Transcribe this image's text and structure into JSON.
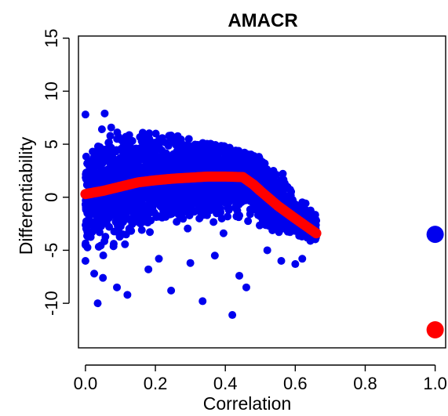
{
  "chart_data": {
    "type": "scatter",
    "title": "AMACR",
    "xlabel": "Correlation",
    "ylabel": "Differentiability",
    "xlim": [
      -0.02,
      1.03
    ],
    "ylim": [
      -14.2,
      15.2
    ],
    "xticks": [
      0.0,
      0.2,
      0.4,
      0.6,
      0.8,
      1.0
    ],
    "xtick_labels": [
      "0.0",
      "0.2",
      "0.4",
      "0.6",
      "0.8",
      "1.0"
    ],
    "yticks": [
      -10,
      -5,
      0,
      5,
      10,
      15
    ],
    "ytick_labels": [
      "-10",
      "-5",
      "0",
      "5",
      "10",
      "15"
    ],
    "grid": false,
    "legend": "none",
    "colors": {
      "points": "#0000ee",
      "trend": "#ff0000",
      "highlight_blue": "#0000ee",
      "highlight_red": "#ff0000"
    },
    "series": [
      {
        "kind": "points",
        "color": "#0000ee",
        "description_of_cloud": {
          "x_range": [
            0.0,
            0.66
          ],
          "center_line": [
            [
              0.0,
              0.5
            ],
            [
              0.15,
              1.5
            ],
            [
              0.3,
              1.9
            ],
            [
              0.45,
              2.0
            ],
            [
              0.5,
              0.6
            ],
            [
              0.6,
              -1.8
            ],
            [
              0.66,
              -3.0
            ]
          ],
          "upper_edge": [
            [
              0.0,
              8.0
            ],
            [
              0.1,
              7.0
            ],
            [
              0.2,
              6.3
            ],
            [
              0.3,
              5.5
            ],
            [
              0.4,
              4.8
            ],
            [
              0.5,
              3.8
            ],
            [
              0.6,
              1.8
            ],
            [
              0.65,
              0.0
            ]
          ],
          "lower_edge": [
            [
              0.0,
              -7.5
            ],
            [
              0.1,
              -8.0
            ],
            [
              0.2,
              -7.0
            ],
            [
              0.3,
              -7.0
            ],
            [
              0.4,
              -7.5
            ],
            [
              0.5,
              -6.5
            ],
            [
              0.6,
              -5.0
            ],
            [
              0.65,
              -4.0
            ]
          ]
        },
        "outliers": [
          [
            0.0,
            7.8
          ],
          [
            0.055,
            7.9
          ],
          [
            0.035,
            -10.0
          ],
          [
            0.12,
            -9.2
          ],
          [
            0.245,
            -8.8
          ],
          [
            0.335,
            -9.8
          ],
          [
            0.42,
            -11.1
          ],
          [
            0.46,
            -8.5
          ],
          [
            0.44,
            -7.4
          ],
          [
            0.09,
            -8.5
          ],
          [
            0.05,
            -7.6
          ],
          [
            0.025,
            -7.2
          ],
          [
            0.6,
            -6.3
          ],
          [
            0.62,
            -5.8
          ],
          [
            0.66,
            -2.2
          ],
          [
            0.52,
            -5.0
          ],
          [
            0.56,
            -6.0
          ],
          [
            0.63,
            -3.0
          ],
          [
            0.37,
            -5.5
          ],
          [
            0.3,
            -6.2
          ],
          [
            0.18,
            -6.8
          ],
          [
            0.21,
            -5.8
          ],
          [
            0.0,
            -6.0
          ],
          [
            0.0,
            -4.5
          ]
        ]
      },
      {
        "kind": "trend",
        "color": "#ff0000",
        "points": [
          [
            0.0,
            0.3
          ],
          [
            0.05,
            0.6
          ],
          [
            0.1,
            1.0
          ],
          [
            0.15,
            1.4
          ],
          [
            0.2,
            1.6
          ],
          [
            0.25,
            1.75
          ],
          [
            0.3,
            1.85
          ],
          [
            0.35,
            1.95
          ],
          [
            0.4,
            1.95
          ],
          [
            0.45,
            1.9
          ],
          [
            0.48,
            1.2
          ],
          [
            0.5,
            0.6
          ],
          [
            0.55,
            -0.8
          ],
          [
            0.6,
            -2.0
          ],
          [
            0.66,
            -3.4
          ]
        ]
      },
      {
        "kind": "highlight",
        "points": [
          {
            "x": 1.0,
            "y": -3.5,
            "color": "#0000ee"
          },
          {
            "x": 1.0,
            "y": -12.5,
            "color": "#ff0000"
          }
        ]
      }
    ]
  }
}
